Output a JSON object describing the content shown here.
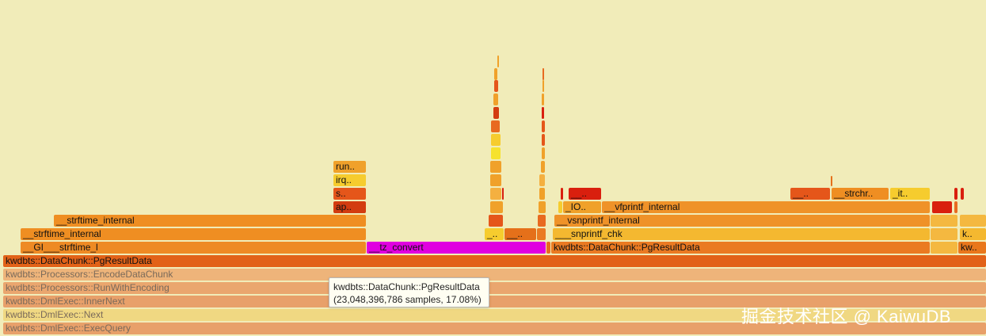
{
  "frames": {
    "exec_query": "kwdbts::DmlExec::ExecQuery",
    "next": "kwdbts::DmlExec::Next",
    "inner_next": "kwdbts::DmlExec::InnerNext",
    "run_with_encoding": "kwdbts::Processors::RunWithEncoding",
    "encode_data_chunk": "kwdbts::Processors::EncodeDataChunk",
    "pg_result_data": "kwdbts::DataChunk::PgResultData",
    "gi_strftime_l": "__GI___strftime_l",
    "tz_convert": "__tz_convert",
    "pg_result_data_right": "kwdbts::DataChunk::PgResultData",
    "kw_trunc": "kw..",
    "strftime_internal_l1": "__strftime_internal",
    "snprintf_chk": "___snprintf_chk",
    "k_trunc": "k..",
    "strftime_internal_l2": "__strftime_internal",
    "vsnprintf_internal": "__vsnprintf_internal",
    "io_trunc": "_IO..",
    "vfprintf_internal": "__vfprintf_internal",
    "ap_trunc": "ap..",
    "s_trunc": "s..",
    "irq_trunc": "irq..",
    "run_trunc": "run..",
    "under_trunc_a": "__..",
    "strchr_trunc": "__strchr..",
    "it_trunc": "_it..",
    "under_trunc_b": "__..",
    "under_trunc_c": "_..",
    "under_trunc_d": "__.."
  },
  "tooltip": {
    "name": "kwdbts::DataChunk::PgResultData",
    "stats": "(23,048,396,786 samples, 17.08%)"
  },
  "watermark": "掘金技术社区 @ KaiwuDB"
}
